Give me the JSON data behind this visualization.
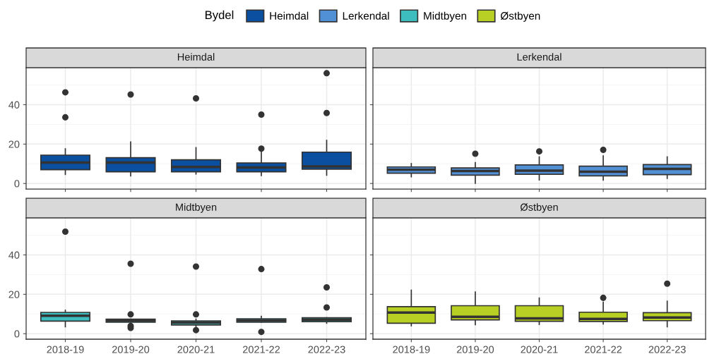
{
  "chart_data": [
    {
      "type": "box",
      "title": "Heimdal",
      "legend": "top",
      "legend_title": "Bydel",
      "categories": [
        "2018-19",
        "2019-20",
        "2020-21",
        "2021-22",
        "2022-23"
      ],
      "ylim": [
        -2.8,
        58.8
      ],
      "yticks": [
        0,
        20,
        40
      ],
      "grid": true,
      "tick_labels": "y",
      "series": [
        {
          "name": "Heimdal",
          "color": "#0a4fa0",
          "boxes": [
            {
              "low": 4.6,
              "q1": 7.0,
              "median": 10.6,
              "q3": 14.4,
              "high": 17.6,
              "outliers": [
                33.6,
                46.3
              ]
            },
            {
              "low": 3.9,
              "q1": 5.9,
              "median": 10.6,
              "q3": 13.1,
              "high": 21.1,
              "outliers": [
                45.2
              ]
            },
            {
              "low": 4.8,
              "q1": 5.9,
              "median": 8.4,
              "q3": 12.0,
              "high": 18.2,
              "outliers": [
                43.2
              ]
            },
            {
              "low": 4.0,
              "q1": 5.9,
              "median": 8.1,
              "q3": 10.4,
              "high": 16.8,
              "outliers": [
                17.7,
                35.0
              ]
            },
            {
              "low": 4.2,
              "q1": 7.3,
              "median": 8.7,
              "q3": 15.9,
              "high": 21.9,
              "outliers": [
                35.8,
                56.0
              ]
            }
          ]
        }
      ]
    },
    {
      "type": "box",
      "title": "Lerkendal",
      "categories": [
        "2018-19",
        "2019-20",
        "2020-21",
        "2021-22",
        "2022-23"
      ],
      "ylim": [
        -2.8,
        58.8
      ],
      "yticks": [
        0,
        20,
        40
      ],
      "grid": true,
      "tick_labels": false,
      "series": [
        {
          "name": "Lerkendal",
          "color": "#5290d6",
          "boxes": [
            {
              "low": 3.4,
              "q1": 5.2,
              "median": 7.0,
              "q3": 8.4,
              "high": 10.1
            },
            {
              "low": 0.1,
              "q1": 4.2,
              "median": 6.3,
              "q3": 7.9,
              "high": 10.6,
              "outliers": [
                15.1
              ]
            },
            {
              "low": 1.8,
              "q1": 4.7,
              "median": 6.5,
              "q3": 9.4,
              "high": 13.5,
              "outliers": [
                16.3
              ]
            },
            {
              "low": 1.7,
              "q1": 3.9,
              "median": 6.0,
              "q3": 8.8,
              "high": 14.0,
              "outliers": [
                17.1
              ]
            },
            {
              "low": 2.6,
              "q1": 4.5,
              "median": 7.4,
              "q3": 9.6,
              "high": 13.5
            }
          ]
        }
      ]
    },
    {
      "type": "box",
      "title": "Midtbyen",
      "categories": [
        "2018-19",
        "2019-20",
        "2020-21",
        "2021-22",
        "2022-23"
      ],
      "ylim": [
        -2.8,
        58.8
      ],
      "yticks": [
        0,
        20,
        40
      ],
      "grid": true,
      "series": [
        {
          "name": "Midtbyen",
          "color": "#3dbdbd",
          "boxes": [
            {
              "low": 3.5,
              "q1": 6.4,
              "median": 9.1,
              "q3": 10.8,
              "high": 11.9,
              "outliers": [
                51.8
              ]
            },
            {
              "low": 5.8,
              "q1": 5.8,
              "median": 6.6,
              "q3": 7.4,
              "high": 7.4,
              "outliers": [
                2.9,
                3.9,
                9.8,
                35.5
              ]
            },
            {
              "low": 3.6,
              "q1": 4.4,
              "median": 5.6,
              "q3": 6.5,
              "high": 7.4,
              "outliers": [
                1.8,
                9.8,
                34.1
              ]
            },
            {
              "low": 5.8,
              "q1": 5.8,
              "median": 6.7,
              "q3": 7.6,
              "high": 8.8,
              "outliers": [
                0.9,
                32.8
              ]
            },
            {
              "low": 5.3,
              "q1": 6.1,
              "median": 7.1,
              "q3": 8.1,
              "high": 8.1,
              "outliers": [
                13.3,
                23.5
              ]
            }
          ]
        }
      ]
    },
    {
      "type": "box",
      "title": "Østbyen",
      "categories": [
        "2018-19",
        "2019-20",
        "2020-21",
        "2021-22",
        "2022-23"
      ],
      "ylim": [
        -2.8,
        58.8
      ],
      "yticks": [
        0,
        20,
        40
      ],
      "grid": true,
      "tick_labels": "x",
      "series": [
        {
          "name": "Østbyen",
          "color": "#b8cf23",
          "boxes": [
            {
              "low": 4.0,
              "q1": 5.3,
              "median": 10.7,
              "q3": 13.7,
              "high": 22.1
            },
            {
              "low": 4.6,
              "q1": 7.0,
              "median": 8.6,
              "q3": 14.2,
              "high": 21.2
            },
            {
              "low": 4.7,
              "q1": 6.3,
              "median": 7.8,
              "q3": 14.2,
              "high": 18.1
            },
            {
              "low": 4.9,
              "q1": 6.2,
              "median": 7.5,
              "q3": 10.9,
              "high": 16.0,
              "outliers": [
                18.2
              ]
            },
            {
              "low": 3.5,
              "q1": 6.6,
              "median": 8.2,
              "q3": 10.7,
              "high": 16.5,
              "outliers": [
                25.4
              ]
            }
          ]
        }
      ]
    }
  ]
}
